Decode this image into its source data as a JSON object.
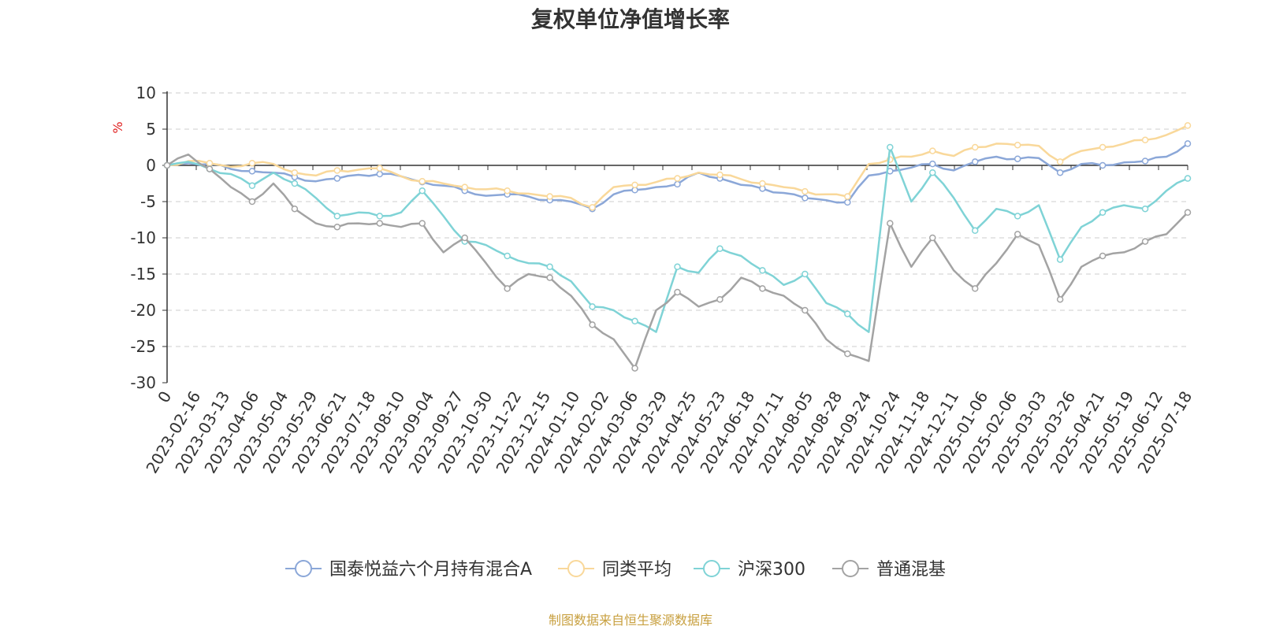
{
  "chart_data": {
    "type": "line",
    "title": "复权单位净值增长率",
    "ylabel": "%",
    "ylim": [
      -30,
      10
    ],
    "yticks": [
      10,
      5,
      0,
      -5,
      -10,
      -15,
      -20,
      -25,
      -30
    ],
    "x_origin_label": "0",
    "x_tick_labels": [
      "2023-02-16",
      "2023-03-13",
      "2023-04-06",
      "2023-05-04",
      "2023-05-29",
      "2023-06-21",
      "2023-07-18",
      "2023-08-10",
      "2023-09-04",
      "2023-09-27",
      "2023-10-30",
      "2023-11-22",
      "2023-12-15",
      "2024-01-10",
      "2024-02-02",
      "2024-03-06",
      "2024-03-29",
      "2024-04-25",
      "2024-05-23",
      "2024-06-18",
      "2024-07-11",
      "2024-08-05",
      "2024-08-28",
      "2024-09-24",
      "2024-10-24",
      "2024-11-18",
      "2024-12-11",
      "2025-01-06",
      "2025-02-06",
      "2025-03-03",
      "2025-03-26",
      "2025-04-21",
      "2025-05-19",
      "2025-06-12",
      "2025-07-18"
    ],
    "grid": true,
    "legend_position": "bottom",
    "series": [
      {
        "name": "国泰悦益六个月持有混合A",
        "color": "#8ba7d8",
        "values": [
          0,
          0.3,
          0.2,
          -0.5,
          -0.8,
          -1.0,
          -1.6,
          -2.2,
          -1.8,
          -1.3,
          -1.2,
          -1.5,
          -2.3,
          -2.8,
          -3.5,
          -4.2,
          -4.0,
          -4.3,
          -4.8,
          -5.0,
          -6.0,
          -4.0,
          -3.4,
          -3.0,
          -2.6,
          -1.0,
          -1.8,
          -2.7,
          -3.2,
          -3.8,
          -4.5,
          -4.8,
          -5.1,
          -1.4,
          -0.8,
          -0.3,
          0.2,
          -0.7,
          0.5,
          1.2,
          0.9,
          1.0,
          -1.0,
          0.2,
          0.0,
          0.4,
          0.6,
          1.2,
          3.0
        ]
      },
      {
        "name": "同类平均",
        "color": "#f9d89a",
        "values": [
          0,
          0.6,
          0.3,
          -0.2,
          0.3,
          0.2,
          -1.0,
          -1.4,
          -0.7,
          -0.6,
          -0.4,
          -1.5,
          -2.2,
          -2.5,
          -3.0,
          -3.3,
          -3.5,
          -3.9,
          -4.3,
          -4.5,
          -5.8,
          -3.0,
          -2.7,
          -2.3,
          -1.8,
          -1.0,
          -1.3,
          -1.9,
          -2.5,
          -3.0,
          -3.6,
          -4.0,
          -4.3,
          0.2,
          0.8,
          1.2,
          2.0,
          1.3,
          2.5,
          3.0,
          2.8,
          2.7,
          0.5,
          2.0,
          2.5,
          3.0,
          3.5,
          4.2,
          5.5
        ]
      },
      {
        "name": "沪深300",
        "color": "#7fd3d6",
        "values": [
          0,
          0.5,
          -0.5,
          -1.2,
          -2.8,
          -1.0,
          -2.5,
          -4.5,
          -7.0,
          -6.5,
          -7.0,
          -6.5,
          -3.5,
          -7.0,
          -10.5,
          -11.0,
          -12.5,
          -13.5,
          -14.0,
          -16.0,
          -19.5,
          -20.0,
          -21.5,
          -23.0,
          -14.0,
          -14.8,
          -11.5,
          -12.5,
          -14.5,
          -16.5,
          -15.0,
          -19.0,
          -20.5,
          -23.0,
          2.5,
          -5.0,
          -1.0,
          -4.5,
          -9.0,
          -6.0,
          -7.0,
          -5.5,
          -13.0,
          -8.5,
          -6.5,
          -5.5,
          -6.0,
          -3.5,
          -1.8
        ]
      },
      {
        "name": "普通混基",
        "color": "#a3a3a3",
        "values": [
          0,
          1.5,
          -0.5,
          -3.0,
          -5.0,
          -2.5,
          -6.0,
          -8.0,
          -8.5,
          -8.0,
          -8.0,
          -8.5,
          -8.0,
          -12.0,
          -10.0,
          -13.5,
          -17.0,
          -15.0,
          -15.5,
          -18.0,
          -22.0,
          -24.0,
          -28.0,
          -20.0,
          -17.5,
          -19.5,
          -18.5,
          -15.5,
          -17.0,
          -18.0,
          -20.0,
          -24.0,
          -26.0,
          -27.0,
          -8.0,
          -14.0,
          -10.0,
          -14.5,
          -17.0,
          -13.5,
          -9.5,
          -11.0,
          -18.5,
          -14.0,
          -12.5,
          -12.0,
          -10.5,
          -9.5,
          -6.5
        ]
      }
    ]
  },
  "source": {
    "text": "制图数据来自恒生聚源数据库",
    "color": "#c8a040"
  },
  "colors": {
    "ylabel": "#e02020",
    "axis": "#333333",
    "grid": "#cccccc"
  }
}
